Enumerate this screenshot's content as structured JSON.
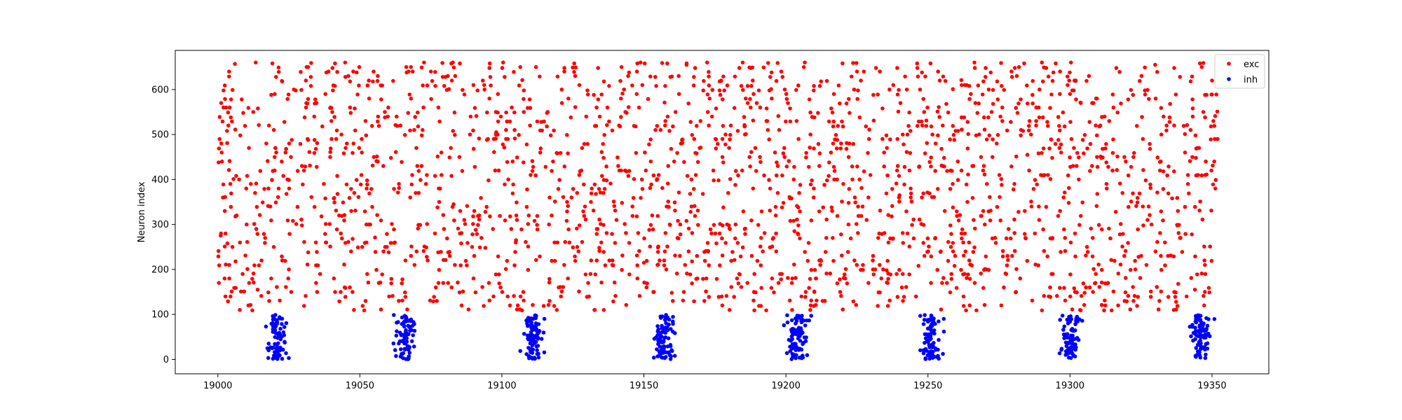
{
  "chart_data": {
    "type": "scatter",
    "title": "",
    "xlabel": "",
    "ylabel": "Neuron index",
    "xlim": [
      18985,
      19370
    ],
    "ylim": [
      -32,
      687
    ],
    "x_ticks": [
      19000,
      19050,
      19100,
      19150,
      19200,
      19250,
      19300,
      19350
    ],
    "y_ticks": [
      0,
      100,
      200,
      300,
      400,
      500,
      600
    ],
    "grid": false,
    "legend_position": "top-right",
    "series": [
      {
        "name": "exc",
        "color": "#ff0000",
        "index_range": [
          100,
          659
        ],
        "time_range": [
          19000,
          19352
        ],
        "approx_point_count": 2200,
        "points_sample": [
          [
            19001,
            275
          ],
          [
            19002,
            598
          ],
          [
            19004,
            210
          ],
          [
            19006,
            657
          ],
          [
            19010,
            380
          ],
          [
            19014,
            155
          ],
          [
            19020,
            420
          ],
          [
            19025,
            200
          ],
          [
            19031,
            620
          ],
          [
            19038,
            260
          ],
          [
            19045,
            470
          ],
          [
            19052,
            130
          ],
          [
            19060,
            560
          ],
          [
            19068,
            230
          ],
          [
            19075,
            640
          ],
          [
            19083,
            345
          ],
          [
            19090,
            180
          ],
          [
            19098,
            505
          ],
          [
            19105,
            265
          ],
          [
            19112,
            650
          ],
          [
            19120,
            160
          ],
          [
            19128,
            420
          ],
          [
            19135,
            260
          ],
          [
            19143,
            600
          ],
          [
            19150,
            215
          ],
          [
            19158,
            340
          ],
          [
            19165,
            655
          ],
          [
            19172,
            180
          ],
          [
            19180,
            470
          ],
          [
            19188,
            230
          ],
          [
            19195,
            580
          ],
          [
            19203,
            285
          ],
          [
            19210,
            150
          ],
          [
            19218,
            400
          ],
          [
            19225,
            640
          ],
          [
            19233,
            210
          ],
          [
            19240,
            365
          ],
          [
            19248,
            520
          ],
          [
            19255,
            170
          ],
          [
            19263,
            610
          ],
          [
            19270,
            300
          ],
          [
            19278,
            230
          ],
          [
            19285,
            455
          ],
          [
            19293,
            160
          ],
          [
            19300,
            590
          ],
          [
            19308,
            270
          ],
          [
            19315,
            420
          ],
          [
            19323,
            200
          ],
          [
            19330,
            655
          ],
          [
            19338,
            330
          ],
          [
            19344,
            155
          ],
          [
            19350,
            620
          ]
        ]
      },
      {
        "name": "inh",
        "color": "#0000ff",
        "index_range": [
          0,
          99
        ],
        "time_range": [
          19018,
          19353
        ],
        "approx_point_count": 640,
        "bursts": [
          {
            "center": 19021,
            "spread": 2.6
          },
          {
            "center": 19066,
            "spread": 2.8
          },
          {
            "center": 19111,
            "spread": 2.8
          },
          {
            "center": 19157,
            "spread": 2.8
          },
          {
            "center": 19204,
            "spread": 2.8
          },
          {
            "center": 19251,
            "spread": 2.6
          },
          {
            "center": 19300,
            "spread": 2.8
          },
          {
            "center": 19346,
            "spread": 2.6
          }
        ]
      }
    ]
  }
}
